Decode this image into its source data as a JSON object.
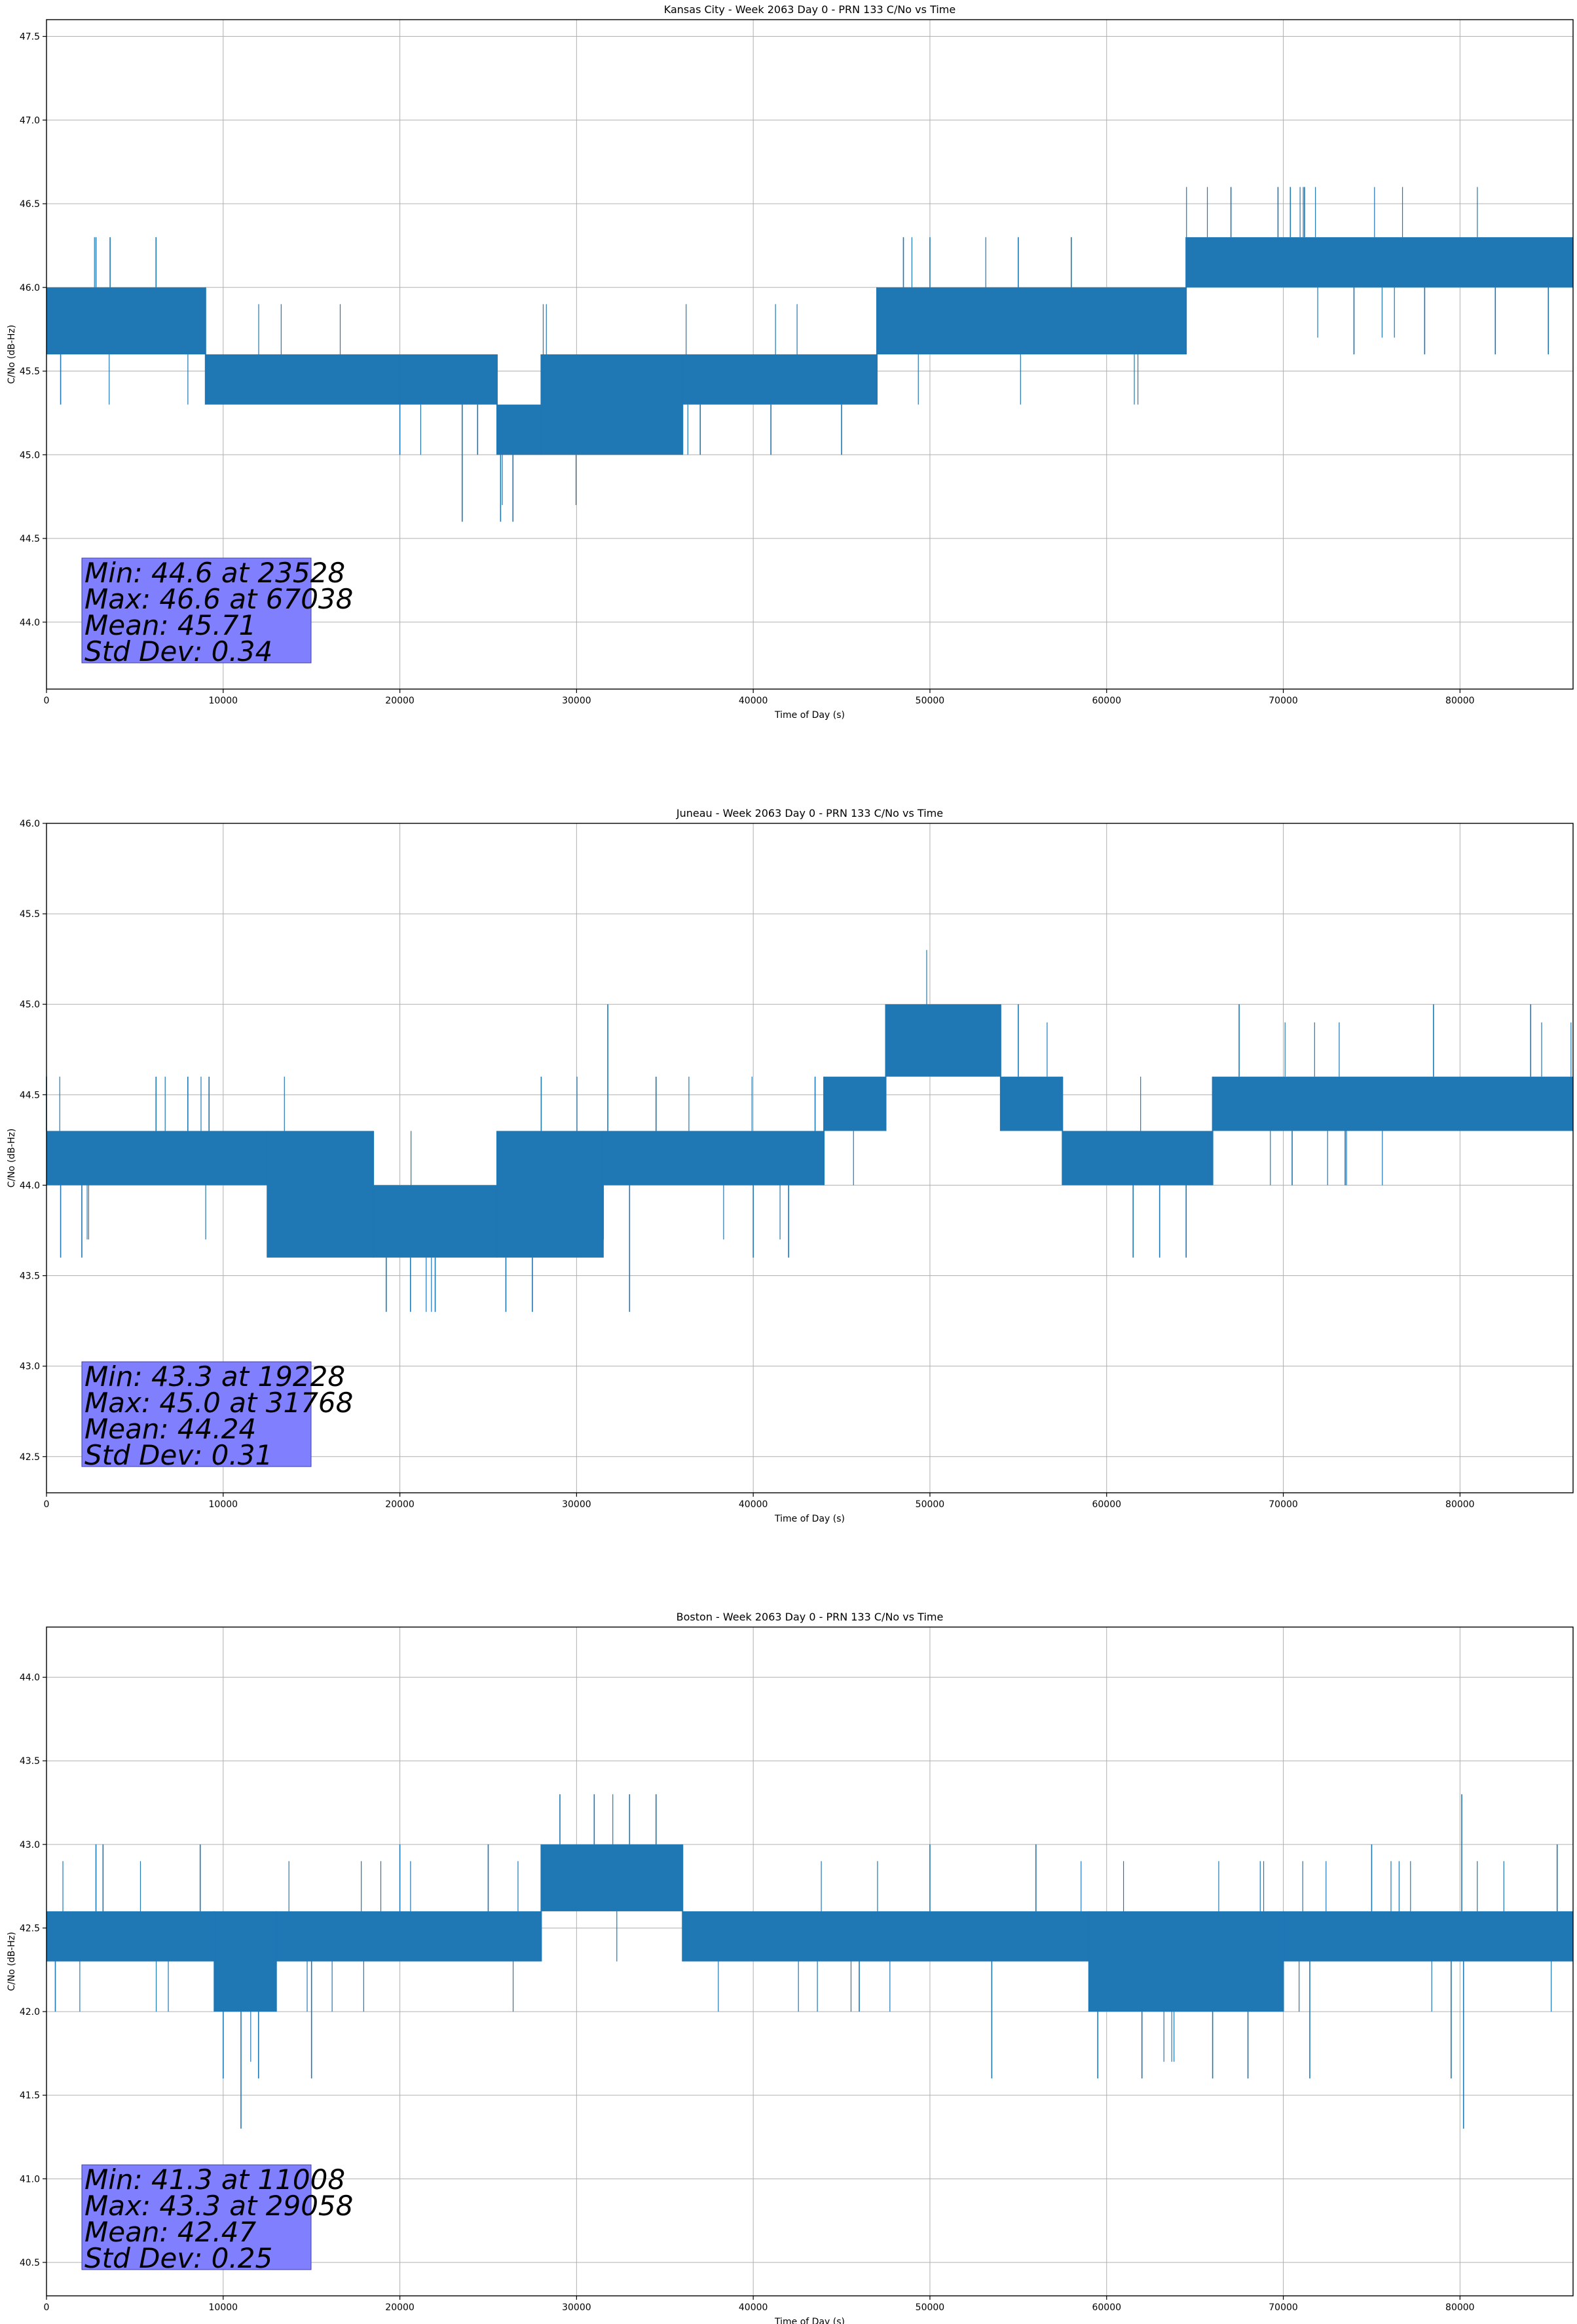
{
  "colors": {
    "series": "#1f77b4",
    "stats_box": "#8080ff",
    "grid": "#b0b0b0"
  },
  "chart_data": [
    {
      "type": "line",
      "title": "Kansas City - Week 2063 Day 0 - PRN 133 C/No vs Time",
      "xlabel": "Time of Day (s)",
      "ylabel": "C/No (dB-Hz)",
      "xlim": [
        0,
        86400
      ],
      "ylim": [
        43.6,
        47.6
      ],
      "xticks": [
        0,
        10000,
        20000,
        30000,
        40000,
        50000,
        60000,
        70000,
        80000
      ],
      "yticks": [
        44.0,
        44.5,
        45.0,
        45.5,
        46.0,
        46.5,
        47.0,
        47.5
      ],
      "grid": true,
      "stats": [
        "Min: 44.6 at 23528",
        "Max: 46.6 at 67038",
        "Mean: 45.71",
        "Std Dev: 0.34"
      ],
      "bands": [
        {
          "x": [
            0,
            9000
          ],
          "y": [
            45.6,
            46.0
          ]
        },
        {
          "x": [
            9000,
            20000
          ],
          "y": [
            45.3,
            45.6
          ]
        },
        {
          "x": [
            20000,
            25500
          ],
          "y": [
            45.3,
            45.6
          ]
        },
        {
          "x": [
            25500,
            28000
          ],
          "y": [
            45.0,
            45.3
          ]
        },
        {
          "x": [
            28000,
            36000
          ],
          "y": [
            45.0,
            45.6
          ]
        },
        {
          "x": [
            36000,
            47000
          ],
          "y": [
            45.3,
            45.6
          ]
        },
        {
          "x": [
            47000,
            64500
          ],
          "y": [
            45.6,
            46.0
          ]
        },
        {
          "x": [
            64500,
            86400
          ],
          "y": [
            46.0,
            46.3
          ]
        }
      ],
      "spikes": [
        {
          "x": 800,
          "y": 45.3
        },
        {
          "x": 2800,
          "y": 46.3
        },
        {
          "x": 3600,
          "y": 46.3
        },
        {
          "x": 6200,
          "y": 46.3
        },
        {
          "x": 9500,
          "y": 45.3
        },
        {
          "x": 13200,
          "y": 45.3
        },
        {
          "x": 20000,
          "y": 45.0
        },
        {
          "x": 23528,
          "y": 44.6
        },
        {
          "x": 24400,
          "y": 45.0
        },
        {
          "x": 25700,
          "y": 44.6
        },
        {
          "x": 26400,
          "y": 44.6
        },
        {
          "x": 29200,
          "y": 45.0
        },
        {
          "x": 33000,
          "y": 45.0
        },
        {
          "x": 37000,
          "y": 45.0
        },
        {
          "x": 41000,
          "y": 45.0
        },
        {
          "x": 45000,
          "y": 45.0
        },
        {
          "x": 48500,
          "y": 46.3
        },
        {
          "x": 50000,
          "y": 46.3
        },
        {
          "x": 55000,
          "y": 46.3
        },
        {
          "x": 58000,
          "y": 46.3
        },
        {
          "x": 67038,
          "y": 46.6
        },
        {
          "x": 69700,
          "y": 46.6
        },
        {
          "x": 70400,
          "y": 46.6
        },
        {
          "x": 71200,
          "y": 46.6
        },
        {
          "x": 74000,
          "y": 45.6
        },
        {
          "x": 78000,
          "y": 45.6
        },
        {
          "x": 82000,
          "y": 45.6
        },
        {
          "x": 85000,
          "y": 45.6
        }
      ]
    },
    {
      "type": "line",
      "title": "Juneau - Week 2063 Day 0 - PRN 133 C/No vs Time",
      "xlabel": "Time of Day (s)",
      "ylabel": "C/No (dB-Hz)",
      "xlim": [
        0,
        86400
      ],
      "ylim": [
        42.3,
        46.0
      ],
      "xticks": [
        0,
        10000,
        20000,
        30000,
        40000,
        50000,
        60000,
        70000,
        80000
      ],
      "yticks": [
        42.5,
        43.0,
        43.5,
        44.0,
        44.5,
        45.0,
        45.5,
        46.0
      ],
      "grid": true,
      "stats": [
        "Min: 43.3 at 19228",
        "Max: 45.0 at 31768",
        "Mean: 44.24",
        "Std Dev: 0.31"
      ],
      "bands": [
        {
          "x": [
            0,
            12500
          ],
          "y": [
            44.0,
            44.3
          ]
        },
        {
          "x": [
            12500,
            18500
          ],
          "y": [
            43.6,
            44.3
          ]
        },
        {
          "x": [
            18500,
            25500
          ],
          "y": [
            43.6,
            44.0
          ]
        },
        {
          "x": [
            25500,
            31500
          ],
          "y": [
            43.6,
            44.3
          ]
        },
        {
          "x": [
            31500,
            44000
          ],
          "y": [
            44.0,
            44.3
          ]
        },
        {
          "x": [
            44000,
            47500
          ],
          "y": [
            44.3,
            44.6
          ]
        },
        {
          "x": [
            47500,
            54000
          ],
          "y": [
            44.6,
            45.0
          ]
        },
        {
          "x": [
            54000,
            57500
          ],
          "y": [
            44.3,
            44.6
          ]
        },
        {
          "x": [
            57500,
            66000
          ],
          "y": [
            44.0,
            44.3
          ]
        },
        {
          "x": [
            66000,
            86400
          ],
          "y": [
            44.3,
            44.6
          ]
        }
      ],
      "spikes": [
        {
          "x": 0,
          "y": 44.6
        },
        {
          "x": 800,
          "y": 43.6
        },
        {
          "x": 2000,
          "y": 43.6
        },
        {
          "x": 6200,
          "y": 44.6
        },
        {
          "x": 8000,
          "y": 44.6
        },
        {
          "x": 9200,
          "y": 44.6
        },
        {
          "x": 14000,
          "y": 43.6
        },
        {
          "x": 19228,
          "y": 43.3
        },
        {
          "x": 20600,
          "y": 43.3
        },
        {
          "x": 22000,
          "y": 43.3
        },
        {
          "x": 26000,
          "y": 43.3
        },
        {
          "x": 27500,
          "y": 43.3
        },
        {
          "x": 31768,
          "y": 45.0
        },
        {
          "x": 28000,
          "y": 44.6
        },
        {
          "x": 33000,
          "y": 43.3
        },
        {
          "x": 34500,
          "y": 44.6
        },
        {
          "x": 40000,
          "y": 43.6
        },
        {
          "x": 42000,
          "y": 43.6
        },
        {
          "x": 43500,
          "y": 44.6
        },
        {
          "x": 55000,
          "y": 45.0
        },
        {
          "x": 61500,
          "y": 43.6
        },
        {
          "x": 63000,
          "y": 43.6
        },
        {
          "x": 64500,
          "y": 43.6
        },
        {
          "x": 67500,
          "y": 45.0
        },
        {
          "x": 70500,
          "y": 44.0
        },
        {
          "x": 73500,
          "y": 44.0
        },
        {
          "x": 78500,
          "y": 45.0
        },
        {
          "x": 84000,
          "y": 45.0
        }
      ]
    },
    {
      "type": "line",
      "title": "Boston - Week 2063 Day 0 - PRN 133 C/No vs Time",
      "xlabel": "Time of Day (s)",
      "ylabel": "C/No (dB-Hz)",
      "xlim": [
        0,
        86400
      ],
      "ylim": [
        40.3,
        44.3
      ],
      "xticks": [
        0,
        10000,
        20000,
        30000,
        40000,
        50000,
        60000,
        70000,
        80000
      ],
      "yticks": [
        40.5,
        41.0,
        41.5,
        42.0,
        42.5,
        43.0,
        43.5,
        44.0
      ],
      "grid": true,
      "stats": [
        "Min: 41.3 at 11008",
        "Max: 43.3 at 29058",
        "Mean: 42.47",
        "Std Dev: 0.25"
      ],
      "bands": [
        {
          "x": [
            0,
            9500
          ],
          "y": [
            42.3,
            42.6
          ]
        },
        {
          "x": [
            9500,
            13000
          ],
          "y": [
            42.0,
            42.6
          ]
        },
        {
          "x": [
            13000,
            28000
          ],
          "y": [
            42.3,
            42.6
          ]
        },
        {
          "x": [
            28000,
            36000
          ],
          "y": [
            42.6,
            43.0
          ]
        },
        {
          "x": [
            36000,
            59000
          ],
          "y": [
            42.3,
            42.6
          ]
        },
        {
          "x": [
            59000,
            70000
          ],
          "y": [
            42.0,
            42.6
          ]
        },
        {
          "x": [
            70000,
            86400
          ],
          "y": [
            42.3,
            42.6
          ]
        }
      ],
      "spikes": [
        {
          "x": 500,
          "y": 42.0
        },
        {
          "x": 2800,
          "y": 43.0
        },
        {
          "x": 3200,
          "y": 43.0
        },
        {
          "x": 8700,
          "y": 43.0
        },
        {
          "x": 10000,
          "y": 41.6
        },
        {
          "x": 11008,
          "y": 41.3
        },
        {
          "x": 12000,
          "y": 41.6
        },
        {
          "x": 15000,
          "y": 41.6
        },
        {
          "x": 20000,
          "y": 43.0
        },
        {
          "x": 25000,
          "y": 43.0
        },
        {
          "x": 29058,
          "y": 43.3
        },
        {
          "x": 31000,
          "y": 43.3
        },
        {
          "x": 33000,
          "y": 43.3
        },
        {
          "x": 34500,
          "y": 43.3
        },
        {
          "x": 46000,
          "y": 42.0
        },
        {
          "x": 50000,
          "y": 43.0
        },
        {
          "x": 53500,
          "y": 41.6
        },
        {
          "x": 56000,
          "y": 43.0
        },
        {
          "x": 59500,
          "y": 41.6
        },
        {
          "x": 62000,
          "y": 41.6
        },
        {
          "x": 66000,
          "y": 41.6
        },
        {
          "x": 68000,
          "y": 41.6
        },
        {
          "x": 71500,
          "y": 41.6
        },
        {
          "x": 75000,
          "y": 43.0
        },
        {
          "x": 79500,
          "y": 41.6
        },
        {
          "x": 80100,
          "y": 43.3
        },
        {
          "x": 80200,
          "y": 41.3
        },
        {
          "x": 85500,
          "y": 43.0
        }
      ]
    }
  ]
}
